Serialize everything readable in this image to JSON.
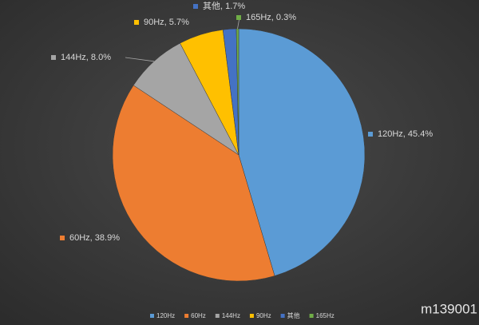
{
  "chart_data": {
    "type": "pie",
    "categories": [
      "120Hz",
      "60Hz",
      "144Hz",
      "90Hz",
      "其他",
      "165Hz"
    ],
    "values": [
      45.4,
      38.9,
      8.0,
      5.7,
      1.7,
      0.3
    ],
    "value_labels": [
      "120Hz, 45.4%",
      "60Hz, 38.9%",
      "144Hz, 8.0%",
      "90Hz, 5.7%",
      "其他, 1.7%",
      "165Hz, 0.3%"
    ],
    "colors": [
      "#5b9bd5",
      "#ed7d31",
      "#a5a5a5",
      "#ffc000",
      "#4472c4",
      "#70ad47"
    ],
    "watermark": "m139001"
  }
}
